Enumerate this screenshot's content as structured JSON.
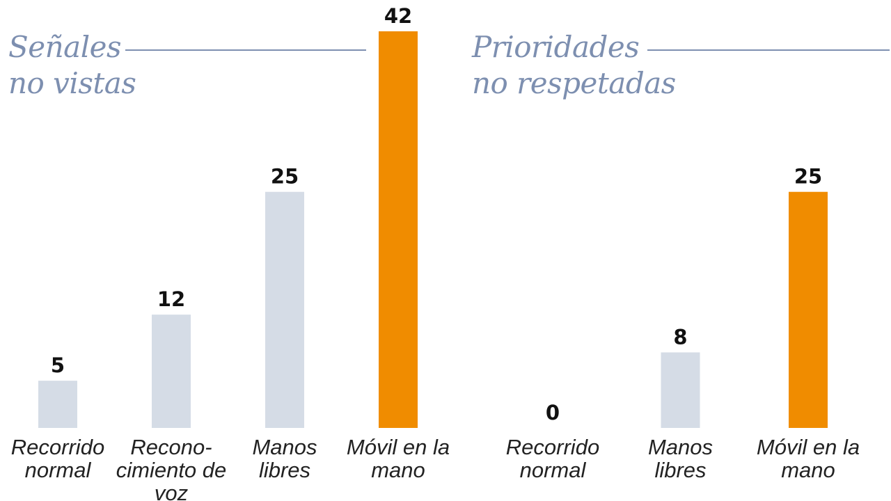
{
  "chart_data": [
    {
      "type": "bar",
      "title": "Señales no vistas",
      "categories": [
        "Recorrido normal",
        "Recono-cimiento de voz",
        "Manos libres",
        "Móvil en la mano"
      ],
      "values": [
        5,
        12,
        25,
        42
      ],
      "colors": [
        "#d5dce6",
        "#d5dce6",
        "#d5dce6",
        "#f08c00"
      ]
    },
    {
      "type": "bar",
      "title": "Prioridades no respetadas",
      "categories": [
        "Recorrido normal",
        "Manos libres",
        "Móvil en la mano"
      ],
      "values": [
        0,
        8,
        25
      ],
      "colors": [
        "#d5dce6",
        "#d5dce6",
        "#f08c00"
      ]
    }
  ]
}
